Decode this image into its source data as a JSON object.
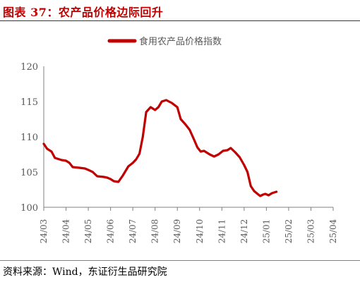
{
  "figure_title": "图表 37：农产品价格边际回升",
  "source": "资料来源：Wind，东证衍生品研究院",
  "colors": {
    "title": "#c00000",
    "series": "#c00000",
    "axis": "#808080",
    "text": "#595959"
  },
  "chart_data": {
    "type": "line",
    "title": "",
    "xlabel": "",
    "ylabel": "",
    "ylim": [
      100,
      120
    ],
    "yticks": [
      100,
      105,
      110,
      115,
      120
    ],
    "grid": false,
    "legend": "top-center",
    "x_ticks": [
      "24/03",
      "24/04",
      "24/05",
      "24/06",
      "24/07",
      "24/08",
      "24/09",
      "24/10",
      "24/11",
      "24/12",
      "25/01",
      "25/02",
      "25/03",
      "25/04"
    ],
    "series": [
      {
        "name": "食用农产品价格指数",
        "color": "#c00000",
        "points": [
          [
            0,
            109.0
          ],
          [
            0.15,
            108.3
          ],
          [
            0.35,
            107.9
          ],
          [
            0.5,
            107.0
          ],
          [
            0.8,
            106.7
          ],
          [
            1.0,
            106.6
          ],
          [
            1.15,
            106.3
          ],
          [
            1.3,
            105.7
          ],
          [
            1.6,
            105.6
          ],
          [
            1.85,
            105.5
          ],
          [
            2.0,
            105.3
          ],
          [
            2.2,
            105.0
          ],
          [
            2.4,
            104.4
          ],
          [
            2.7,
            104.3
          ],
          [
            2.85,
            104.2
          ],
          [
            3.0,
            104.0
          ],
          [
            3.15,
            103.7
          ],
          [
            3.35,
            103.6
          ],
          [
            3.55,
            104.5
          ],
          [
            3.8,
            105.8
          ],
          [
            4.0,
            106.3
          ],
          [
            4.15,
            106.8
          ],
          [
            4.3,
            107.6
          ],
          [
            4.45,
            110.0
          ],
          [
            4.6,
            113.5
          ],
          [
            4.8,
            114.2
          ],
          [
            5.0,
            113.8
          ],
          [
            5.15,
            114.2
          ],
          [
            5.3,
            115.0
          ],
          [
            5.5,
            115.2
          ],
          [
            5.75,
            114.8
          ],
          [
            6.0,
            114.2
          ],
          [
            6.15,
            112.5
          ],
          [
            6.35,
            111.8
          ],
          [
            6.55,
            111.0
          ],
          [
            6.75,
            109.6
          ],
          [
            6.9,
            108.5
          ],
          [
            7.05,
            107.9
          ],
          [
            7.2,
            108.0
          ],
          [
            7.45,
            107.5
          ],
          [
            7.65,
            107.2
          ],
          [
            7.85,
            107.5
          ],
          [
            8.05,
            108.0
          ],
          [
            8.25,
            108.1
          ],
          [
            8.4,
            108.4
          ],
          [
            8.6,
            107.8
          ],
          [
            8.8,
            107.1
          ],
          [
            9.0,
            106.0
          ],
          [
            9.15,
            105.0
          ],
          [
            9.3,
            103.0
          ],
          [
            9.45,
            102.3
          ],
          [
            9.6,
            101.9
          ],
          [
            9.72,
            101.6
          ],
          [
            9.85,
            101.8
          ],
          [
            9.95,
            101.9
          ],
          [
            10.1,
            101.7
          ],
          [
            10.25,
            102.0
          ],
          [
            10.45,
            102.2
          ]
        ]
      }
    ]
  }
}
